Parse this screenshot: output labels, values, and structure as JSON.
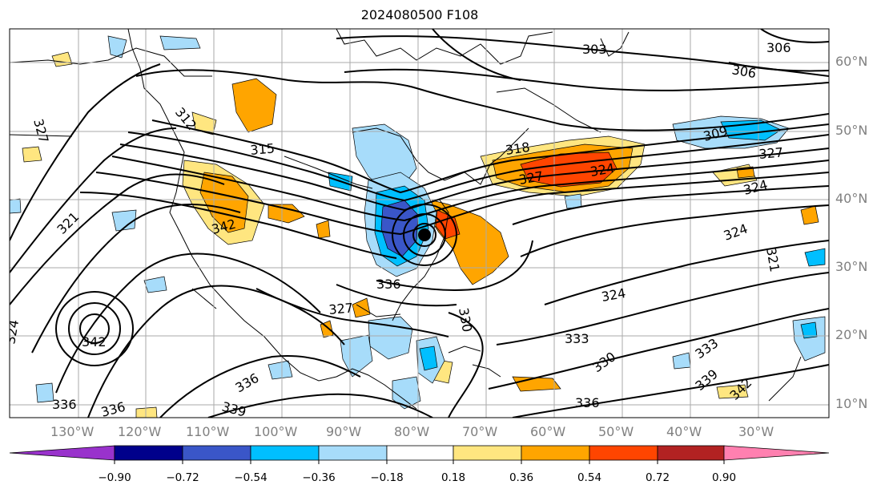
{
  "title": "2024080500 F108",
  "lat_labels": [
    "60°N",
    "50°N",
    "40°N",
    "30°N",
    "20°N",
    "10°N"
  ],
  "lon_labels": [
    "130°W",
    "120°W",
    "110°W",
    "100°W",
    "90°W",
    "80°W",
    "70°W",
    "60°W",
    "50°W",
    "40°W",
    "30°W"
  ],
  "contour_labels": [
    "303",
    "306",
    "306",
    "309",
    "312",
    "315",
    "318",
    "321",
    "321",
    "324",
    "324",
    "324",
    "324",
    "327",
    "327",
    "327",
    "327",
    "330",
    "330",
    "333",
    "333",
    "336",
    "336",
    "336",
    "336",
    "339",
    "339",
    "342",
    "342",
    "342",
    "336",
    "324"
  ],
  "colorbar": {
    "tick_labels": [
      "−0.90",
      "−0.72",
      "−0.54",
      "−0.36",
      "−0.18",
      "0.18",
      "0.36",
      "0.54",
      "0.72",
      "0.90"
    ],
    "colors": [
      "#9932cc",
      "#00008b",
      "#3a56c8",
      "#00bfff",
      "#a7dcfa",
      "#ffffff",
      "#ffe680",
      "#ffa500",
      "#ff4500",
      "#b22222",
      "#ff80b0"
    ]
  },
  "marker": {
    "type": "storm-center",
    "color": "#000000"
  }
}
